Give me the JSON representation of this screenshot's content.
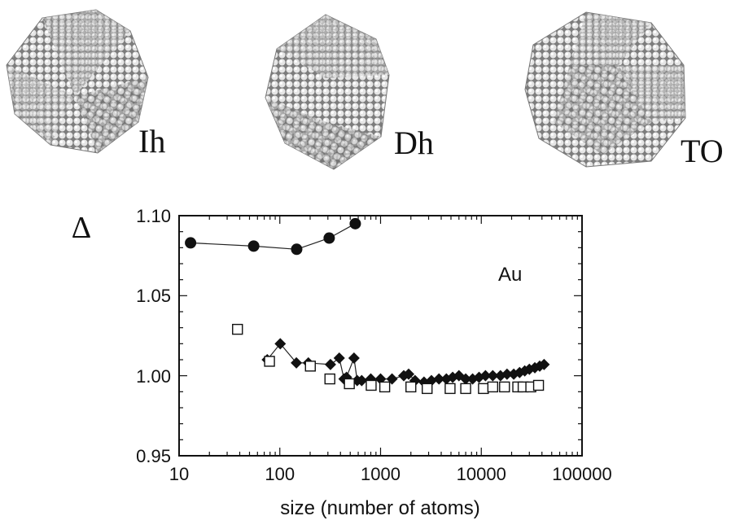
{
  "clusters": [
    {
      "label": "Ih",
      "shape": "icosahedron-cluster"
    },
    {
      "label": "Dh",
      "shape": "decahedron-cluster"
    },
    {
      "label": "TO",
      "shape": "truncated-octahedron-cluster"
    }
  ],
  "chart_data": {
    "type": "scatter",
    "title": "",
    "xlabel": "size (number of atoms)",
    "ylabel": "Δ",
    "xscale": "log",
    "xlim": [
      10,
      100000
    ],
    "ylim": [
      0.95,
      1.1
    ],
    "x_ticks": [
      "10",
      "100",
      "1000",
      "10000",
      "100000"
    ],
    "y_ticks": [
      "0.95",
      "1.00",
      "1.05",
      "1.10"
    ],
    "annotation": "Au",
    "grid": false,
    "series": [
      {
        "marker": "filled-circle",
        "connected": true,
        "points": [
          [
            13,
            1.083
          ],
          [
            55,
            1.081
          ],
          [
            147,
            1.079
          ],
          [
            309,
            1.086
          ],
          [
            561,
            1.095
          ]
        ]
      },
      {
        "marker": "filled-diamond",
        "connected": true,
        "points": [
          [
            75,
            1.01
          ],
          [
            101,
            1.02
          ],
          [
            146,
            1.008
          ],
          [
            192,
            1.008
          ],
          [
            318,
            1.007
          ],
          [
            389,
            1.011
          ],
          [
            434,
            0.998
          ],
          [
            459,
            0.999
          ],
          [
            545,
            1.011
          ],
          [
            586,
            0.997
          ],
          [
            650,
            0.997
          ],
          [
            800,
            0.998
          ],
          [
            1000,
            0.998
          ],
          [
            1300,
            0.998
          ],
          [
            1700,
            1.0
          ],
          [
            1900,
            1.001
          ],
          [
            2200,
            0.997
          ],
          [
            2700,
            0.996
          ],
          [
            3200,
            0.997
          ],
          [
            3800,
            0.998
          ],
          [
            4500,
            0.998
          ],
          [
            5200,
            0.999
          ],
          [
            6000,
            1.0
          ],
          [
            7000,
            0.998
          ],
          [
            8200,
            0.998
          ],
          [
            9500,
            0.999
          ],
          [
            11000,
            1.0
          ],
          [
            13000,
            1.0
          ],
          [
            15500,
            1.0
          ],
          [
            18000,
            1.001
          ],
          [
            21000,
            1.001
          ],
          [
            24000,
            1.002
          ],
          [
            27000,
            1.003
          ],
          [
            30000,
            1.004
          ],
          [
            34000,
            1.005
          ],
          [
            38000,
            1.006
          ],
          [
            42000,
            1.007
          ]
        ]
      },
      {
        "marker": "open-square",
        "connected": false,
        "points": [
          [
            38,
            1.029
          ],
          [
            79,
            1.009
          ],
          [
            201,
            1.006
          ],
          [
            314,
            0.998
          ],
          [
            490,
            0.995
          ],
          [
            807,
            0.994
          ],
          [
            1100,
            0.993
          ],
          [
            2000,
            0.993
          ],
          [
            2900,
            0.992
          ],
          [
            4900,
            0.992
          ],
          [
            7000,
            0.992
          ],
          [
            10500,
            0.992
          ],
          [
            13000,
            0.993
          ],
          [
            17000,
            0.993
          ],
          [
            23000,
            0.993
          ],
          [
            26000,
            0.993
          ],
          [
            31000,
            0.993
          ],
          [
            37000,
            0.994
          ]
        ]
      }
    ]
  }
}
